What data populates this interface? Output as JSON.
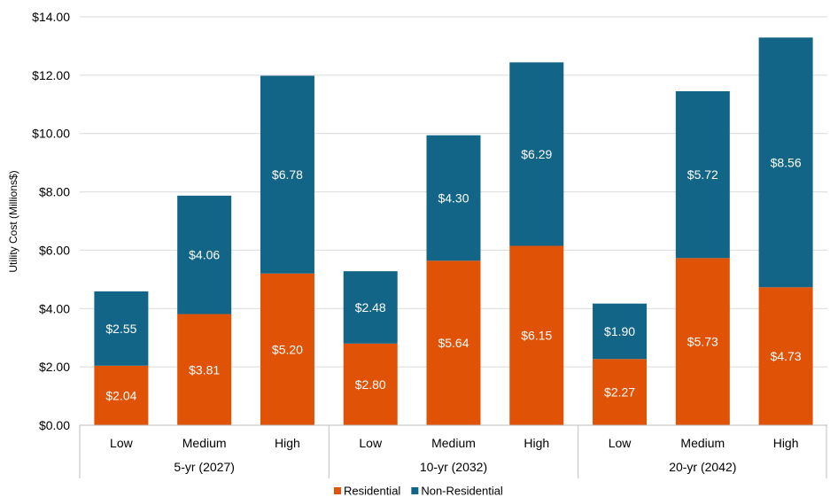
{
  "chart_data": {
    "type": "bar",
    "stacked": true,
    "ylabel": "Utility Cost (Millions$)",
    "ylim": [
      0,
      14
    ],
    "yticks": [
      "$0.00",
      "$2.00",
      "$4.00",
      "$6.00",
      "$8.00",
      "$10.00",
      "$12.00",
      "$14.00"
    ],
    "grid": true,
    "legend_position": "bottom",
    "groups": [
      {
        "label": "5-yr (2027)",
        "categories": [
          "Low",
          "Medium",
          "High"
        ]
      },
      {
        "label": "10-yr (2032)",
        "categories": [
          "Low",
          "Medium",
          "High"
        ]
      },
      {
        "label": "20-yr (2042)",
        "categories": [
          "Low",
          "Medium",
          "High"
        ]
      }
    ],
    "series": [
      {
        "name": "Residential",
        "color": "#E05206",
        "values": [
          2.04,
          3.81,
          5.2,
          2.8,
          5.64,
          6.15,
          2.27,
          5.73,
          4.73
        ],
        "labels": [
          "$2.04",
          "$3.81",
          "$5.20",
          "$2.80",
          "$5.64",
          "$6.15",
          "$2.27",
          "$5.73",
          "$4.73"
        ]
      },
      {
        "name": "Non-Residential",
        "color": "#136587",
        "values": [
          2.55,
          4.06,
          6.78,
          2.48,
          4.3,
          6.29,
          1.9,
          5.72,
          8.56
        ],
        "labels": [
          "$2.55",
          "$4.06",
          "$6.78",
          "$2.48",
          "$4.30",
          "$6.29",
          "$1.90",
          "$5.72",
          "$8.56"
        ]
      }
    ]
  }
}
